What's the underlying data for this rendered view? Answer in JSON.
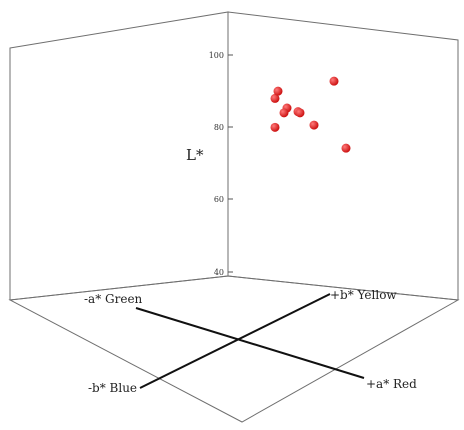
{
  "chart_data": {
    "type": "scatter",
    "title": "",
    "zlabel": "L*",
    "zlim": [
      40,
      100
    ],
    "z_ticks": [
      "40",
      "60",
      "80",
      "100"
    ],
    "axis_labels": {
      "neg_a": "-a* Green",
      "pos_b": "+b* Yellow",
      "neg_b": "-b* Blue",
      "pos_a": "+a* Red"
    },
    "marker_color": "#cc1111",
    "points": [
      {
        "z": 88
      },
      {
        "z": 90
      },
      {
        "z": 87
      },
      {
        "z": 86
      },
      {
        "z": 84
      },
      {
        "z": 84
      },
      {
        "z": 80
      },
      {
        "z": 82
      },
      {
        "z": 90
      },
      {
        "z": 77
      }
    ]
  }
}
